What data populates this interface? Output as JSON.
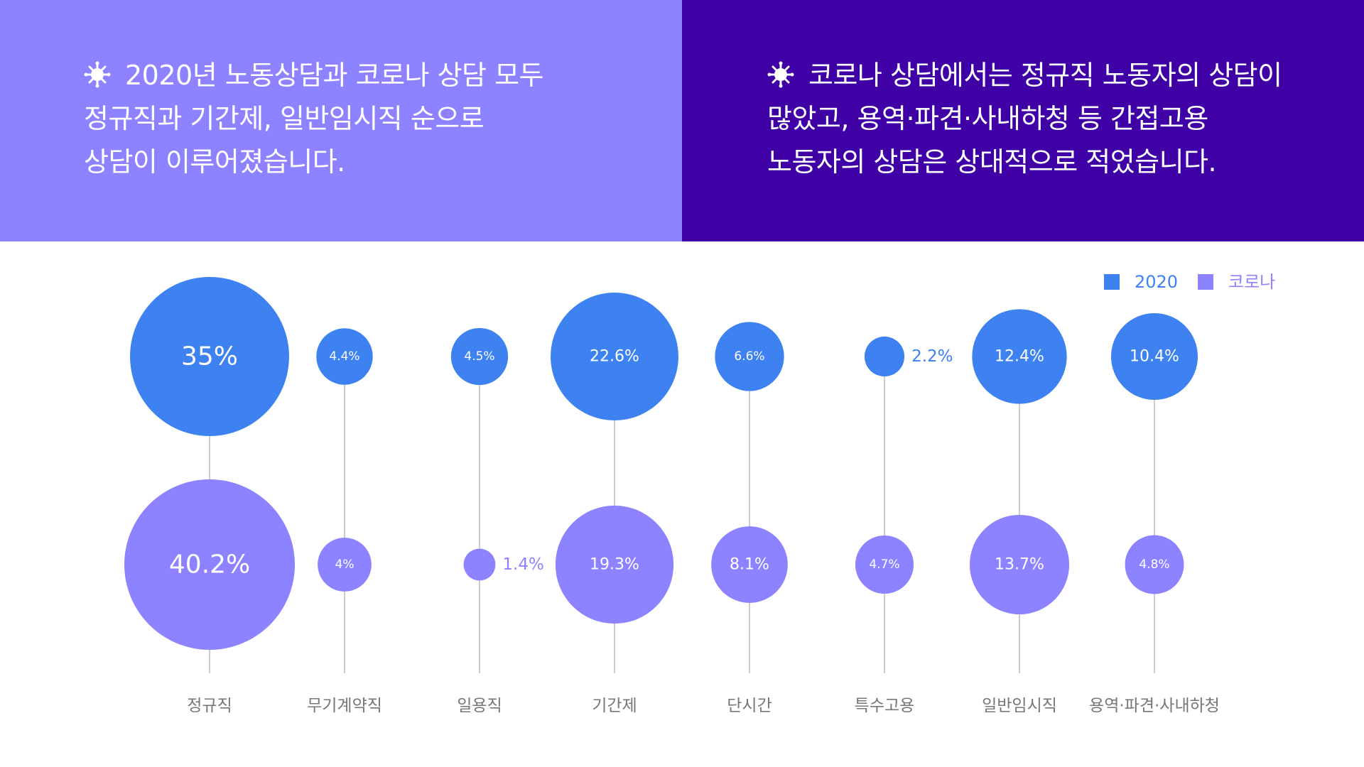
{
  "panels": {
    "left": {
      "icon": "virus-icon",
      "lines": [
        "2020년 노동상담과 코로나 상담 모두",
        "정규직과 기간제, 일반임시직 순으로",
        "상담이 이루어졌습니다."
      ],
      "background": "#8d82ff"
    },
    "right": {
      "icon": "virus-icon",
      "lines": [
        "코로나 상담에서는 정규직 노동자의 상담이",
        "많았고, 용역·파견·사내하청 등 간접고용",
        "노동자의 상담은 상대적으로 적었습니다."
      ],
      "background": "#3f00a6"
    }
  },
  "chart_data": {
    "type": "bubble",
    "categories": [
      "정규직",
      "무기계약직",
      "일용직",
      "기간제",
      "단시간",
      "특수고용",
      "일반임시직",
      "용역·파견·사내하청"
    ],
    "series": [
      {
        "name": "2020",
        "color": "#3d82f0",
        "values": [
          35,
          4.4,
          4.5,
          22.6,
          6.6,
          2.2,
          12.4,
          10.4
        ],
        "labels": [
          "35%",
          "4.4%",
          "4.5%",
          "22.6%",
          "6.6%",
          "2.2%",
          "12.4%",
          "10.4%"
        ]
      },
      {
        "name": "코로나",
        "color": "#8d82ff",
        "values": [
          40.2,
          4,
          1.4,
          19.3,
          8.1,
          4.7,
          13.7,
          4.8
        ],
        "labels": [
          "40.2%",
          "4%",
          "1.4%",
          "19.3%",
          "8.1%",
          "4.7%",
          "13.7%",
          "4.8%"
        ]
      }
    ],
    "legend_position": "top-right",
    "colors": {
      "axis_line": "#bbbbbb",
      "category_label": "#777777"
    }
  }
}
